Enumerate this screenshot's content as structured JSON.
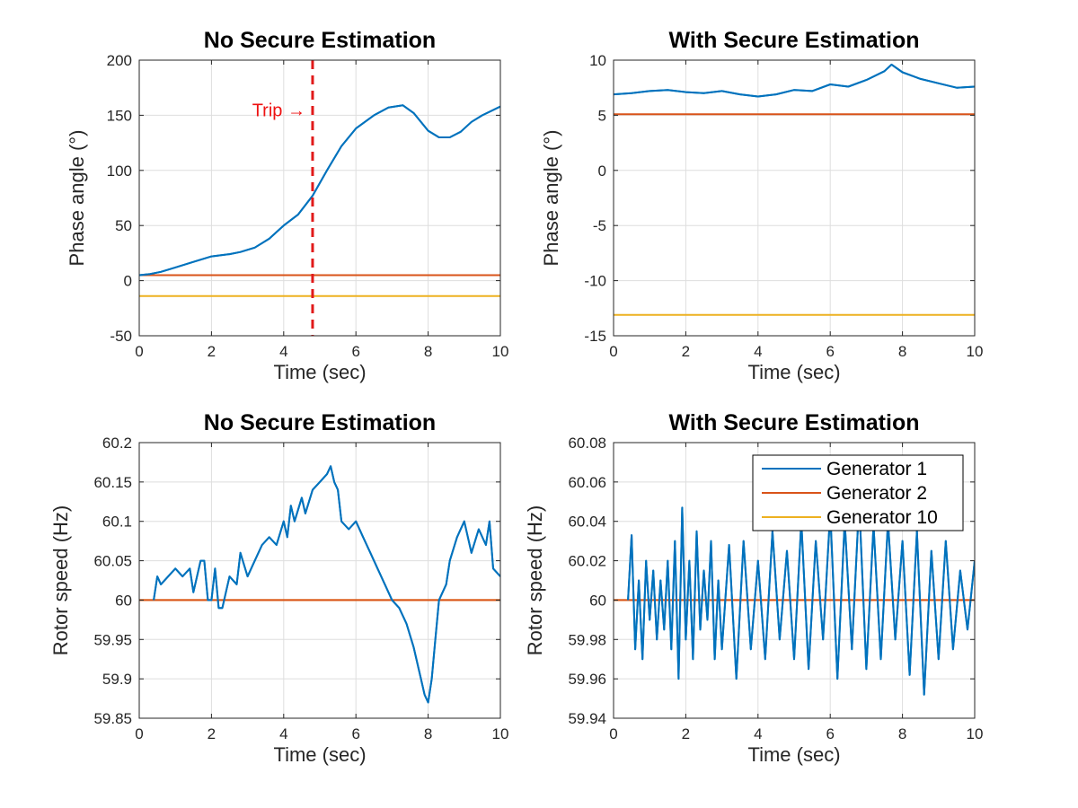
{
  "colors": {
    "series1": "#0072bd",
    "series2": "#d95319",
    "series3": "#edb120",
    "trip": "#e11a1a",
    "grid": "#dedede",
    "axis": "#262626"
  },
  "legend": {
    "placement": "top-right",
    "entries": [
      "Generator 1",
      "Generator 2",
      "Generator 10"
    ]
  },
  "chart_data": [
    {
      "type": "line",
      "title": "No Secure Estimation",
      "xlabel": "Time (sec)",
      "ylabel": "Phase angle (°)",
      "xlim": [
        0,
        10
      ],
      "ylim": [
        -50,
        200
      ],
      "xticks": [
        "0",
        "2",
        "4",
        "6",
        "8",
        "10"
      ],
      "yticks": [
        "-50",
        "0",
        "50",
        "100",
        "150",
        "200"
      ],
      "grid": true,
      "annotation": {
        "text": "Trip →",
        "x": 4.8
      },
      "series": [
        {
          "name": "Generator 1",
          "x": [
            0,
            0.3,
            0.6,
            1,
            1.5,
            2,
            2.5,
            2.8,
            3.2,
            3.6,
            4,
            4.4,
            4.8,
            5.2,
            5.6,
            6,
            6.5,
            6.9,
            7.3,
            7.6,
            8,
            8.3,
            8.6,
            8.9,
            9.2,
            9.5,
            10
          ],
          "y": [
            5,
            6,
            8,
            12,
            17,
            22,
            24,
            26,
            30,
            38,
            50,
            60,
            77,
            100,
            122,
            138,
            150,
            157,
            159,
            152,
            136,
            130,
            130,
            135,
            144,
            150,
            158
          ]
        },
        {
          "name": "Generator 2",
          "x": [
            0,
            10
          ],
          "y": [
            5,
            5
          ]
        },
        {
          "name": "Generator 10",
          "x": [
            0,
            10
          ],
          "y": [
            -14,
            -14
          ]
        }
      ]
    },
    {
      "type": "line",
      "title": "With Secure Estimation",
      "xlabel": "Time (sec)",
      "ylabel": "Phase angle (°)",
      "xlim": [
        0,
        10
      ],
      "ylim": [
        -15,
        10
      ],
      "xticks": [
        "0",
        "2",
        "4",
        "6",
        "8",
        "10"
      ],
      "yticks": [
        "-15",
        "-10",
        "-5",
        "0",
        "5",
        "10"
      ],
      "grid": true,
      "series": [
        {
          "name": "Generator 1",
          "x": [
            0,
            0.5,
            1,
            1.5,
            2,
            2.5,
            3,
            3.5,
            4,
            4.5,
            5,
            5.5,
            6,
            6.5,
            7,
            7.5,
            7.7,
            8,
            8.5,
            9,
            9.5,
            10
          ],
          "y": [
            6.9,
            7.0,
            7.2,
            7.3,
            7.1,
            7.0,
            7.2,
            6.9,
            6.7,
            6.9,
            7.3,
            7.2,
            7.8,
            7.6,
            8.2,
            9.0,
            9.6,
            8.9,
            8.3,
            7.9,
            7.5,
            7.6
          ]
        },
        {
          "name": "Generator 2",
          "x": [
            0,
            10
          ],
          "y": [
            5.1,
            5.1
          ]
        },
        {
          "name": "Generator 10",
          "x": [
            0,
            10
          ],
          "y": [
            -13.1,
            -13.1
          ]
        }
      ]
    },
    {
      "type": "line",
      "title": "No Secure Estimation",
      "xlabel": "Time (sec)",
      "ylabel": "Rotor speed (Hz)",
      "xlim": [
        0,
        10
      ],
      "ylim": [
        59.85,
        60.2
      ],
      "xticks": [
        "0",
        "2",
        "4",
        "6",
        "8",
        "10"
      ],
      "yticks": [
        "59.85",
        "59.9",
        "59.95",
        "60",
        "60.05",
        "60.1",
        "60.15",
        "60.2"
      ],
      "grid": true,
      "series": [
        {
          "name": "Generator 1",
          "x": [
            0.4,
            0.5,
            0.6,
            0.8,
            1.0,
            1.2,
            1.4,
            1.5,
            1.7,
            1.8,
            1.9,
            2.0,
            2.1,
            2.2,
            2.3,
            2.5,
            2.7,
            2.8,
            3.0,
            3.2,
            3.4,
            3.6,
            3.8,
            4.0,
            4.1,
            4.2,
            4.3,
            4.5,
            4.6,
            4.8,
            5.0,
            5.2,
            5.3,
            5.4,
            5.5,
            5.6,
            5.8,
            6.0,
            6.2,
            6.4,
            6.6,
            6.8,
            7.0,
            7.2,
            7.4,
            7.6,
            7.8,
            7.9,
            8.0,
            8.1,
            8.2,
            8.3,
            8.5,
            8.6,
            8.8,
            9.0,
            9.2,
            9.4,
            9.6,
            9.7,
            9.8,
            10.0
          ],
          "y": [
            60.0,
            60.03,
            60.02,
            60.03,
            60.04,
            60.03,
            60.04,
            60.01,
            60.05,
            60.05,
            60.0,
            60.0,
            60.04,
            59.99,
            59.99,
            60.03,
            60.02,
            60.06,
            60.03,
            60.05,
            60.07,
            60.08,
            60.07,
            60.1,
            60.08,
            60.12,
            60.1,
            60.13,
            60.11,
            60.14,
            60.15,
            60.16,
            60.17,
            60.15,
            60.14,
            60.1,
            60.09,
            60.1,
            60.08,
            60.06,
            60.04,
            60.02,
            60.0,
            59.99,
            59.97,
            59.94,
            59.9,
            59.88,
            59.87,
            59.9,
            59.95,
            60.0,
            60.02,
            60.05,
            60.08,
            60.1,
            60.06,
            60.09,
            60.07,
            60.1,
            60.04,
            60.03
          ]
        },
        {
          "name": "Generator 2",
          "x": [
            0,
            10
          ],
          "y": [
            60,
            60
          ]
        },
        {
          "name": "Generator 10",
          "x": [
            0,
            10
          ],
          "y": [
            60,
            60
          ]
        }
      ]
    },
    {
      "type": "line",
      "title": "With Secure Estimation",
      "xlabel": "Time (sec)",
      "ylabel": "Rotor speed (Hz)",
      "xlim": [
        0,
        10
      ],
      "ylim": [
        59.94,
        60.08
      ],
      "xticks": [
        "0",
        "2",
        "4",
        "6",
        "8",
        "10"
      ],
      "yticks": [
        "59.94",
        "59.96",
        "59.98",
        "60",
        "60.02",
        "60.04",
        "60.06",
        "60.08"
      ],
      "grid": true,
      "series": [
        {
          "name": "Generator 1",
          "x": [
            0.4,
            0.5,
            0.6,
            0.7,
            0.8,
            0.9,
            1.0,
            1.1,
            1.2,
            1.3,
            1.4,
            1.5,
            1.6,
            1.7,
            1.8,
            1.9,
            2.0,
            2.1,
            2.2,
            2.3,
            2.4,
            2.5,
            2.6,
            2.7,
            2.8,
            2.9,
            3.0,
            3.2,
            3.4,
            3.6,
            3.8,
            4.0,
            4.2,
            4.4,
            4.6,
            4.8,
            5.0,
            5.2,
            5.4,
            5.6,
            5.8,
            6.0,
            6.2,
            6.4,
            6.6,
            6.8,
            7.0,
            7.2,
            7.4,
            7.6,
            7.8,
            8.0,
            8.2,
            8.4,
            8.6,
            8.8,
            9.0,
            9.2,
            9.4,
            9.6,
            9.8,
            10.0
          ],
          "y": [
            60.0,
            60.033,
            59.975,
            60.01,
            59.97,
            60.02,
            59.99,
            60.015,
            59.98,
            60.01,
            59.985,
            60.02,
            59.975,
            60.03,
            59.96,
            60.047,
            59.98,
            60.02,
            59.97,
            60.035,
            59.985,
            60.015,
            59.99,
            60.03,
            59.97,
            60.01,
            59.975,
            60.028,
            59.96,
            60.03,
            59.975,
            60.02,
            59.97,
            60.035,
            59.98,
            60.025,
            59.97,
            60.04,
            59.965,
            60.03,
            59.98,
            60.045,
            59.96,
            60.04,
            59.975,
            60.05,
            59.965,
            60.038,
            59.97,
            60.04,
            59.98,
            60.03,
            59.962,
            60.035,
            59.952,
            60.025,
            59.97,
            60.03,
            59.975,
            60.015,
            59.985,
            60.02
          ]
        },
        {
          "name": "Generator 2",
          "x": [
            0,
            10
          ],
          "y": [
            60,
            60
          ]
        },
        {
          "name": "Generator 10",
          "x": [
            0,
            10
          ],
          "y": [
            60,
            60
          ]
        }
      ]
    }
  ]
}
